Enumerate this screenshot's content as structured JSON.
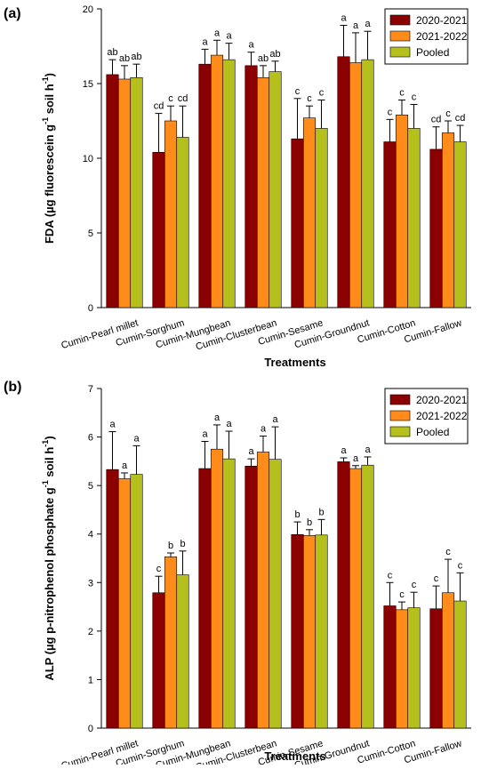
{
  "chart_data": [
    {
      "type": "bar",
      "panel_label": "(a)",
      "ylabel_main": "FDA (µg fluorescein g",
      "ylabel_sup1": "-1",
      "ylabel_mid": " soil h",
      "ylabel_sup2": "-1",
      "ylabel_end": ")",
      "xlabel": "Treatments",
      "ylim": [
        0,
        20
      ],
      "yticks": [
        "0",
        "5",
        "10",
        "15",
        "20"
      ],
      "ytick_values": [
        0,
        5,
        10,
        15,
        20
      ],
      "legend_position": "top-right",
      "categories": [
        "Cumin-Pearl millet",
        "Cumin-Sorghum",
        "Cumin-Mungbean",
        "Cumin-Clusterbean",
        "Cumin-Sesame",
        "Cumin-Groundnut",
        "Cumin-Cotton",
        "Cumin-Fallow"
      ],
      "series": [
        {
          "name": "2020-2021",
          "color": "#8b0000",
          "values": [
            15.6,
            10.4,
            16.3,
            16.2,
            11.3,
            16.8,
            11.1,
            10.6
          ],
          "errors": [
            1.0,
            2.6,
            1.0,
            0.9,
            2.7,
            2.1,
            1.5,
            1.5
          ],
          "labels": [
            "ab",
            "cd",
            "a",
            "a",
            "c",
            "a",
            "c",
            "cd"
          ]
        },
        {
          "name": "2021-2022",
          "color": "#ff8c1a",
          "values": [
            15.3,
            12.5,
            16.9,
            15.4,
            12.7,
            16.4,
            12.9,
            11.7
          ],
          "errors": [
            0.9,
            1.0,
            1.0,
            0.8,
            0.8,
            2.0,
            1.0,
            0.8
          ],
          "labels": [
            "ab",
            "c",
            "a",
            "ab",
            "c",
            "a",
            "c",
            "c"
          ]
        },
        {
          "name": "Pooled",
          "color": "#b5c01c",
          "values": [
            15.4,
            11.4,
            16.6,
            15.8,
            12.0,
            16.6,
            12.0,
            11.1
          ],
          "errors": [
            0.9,
            2.1,
            1.1,
            0.7,
            1.9,
            1.9,
            1.6,
            1.1
          ],
          "labels": [
            "ab",
            "cd",
            "a",
            "ab",
            "c",
            "a",
            "c",
            "cd"
          ]
        }
      ]
    },
    {
      "type": "bar",
      "panel_label": "(b)",
      "ylabel_main": "ALP (µg p-nitrophenol phosphate g",
      "ylabel_sup1": "-1",
      "ylabel_mid": " soil h",
      "ylabel_sup2": "-1",
      "ylabel_end": ")",
      "xlabel": "Treatments",
      "ylim": [
        0,
        7
      ],
      "yticks": [
        "0",
        "1",
        "2",
        "3",
        "4",
        "5",
        "6",
        "7"
      ],
      "ytick_values": [
        0,
        1,
        2,
        3,
        4,
        5,
        6,
        7
      ],
      "legend_position": "top-right",
      "categories": [
        "Cumin-Pearl millet",
        "Cumin-Sorghum",
        "Cumin-Mungbean",
        "Cumin-Clusterbean",
        "Cumin-Sesame",
        "Cumin-Groundnut",
        "Cumin-Cotton",
        "Cumin-Fallow"
      ],
      "series": [
        {
          "name": "2020-2021",
          "color": "#8b0000",
          "values": [
            5.33,
            2.79,
            5.35,
            5.4,
            3.99,
            5.49,
            2.52,
            2.46
          ],
          "errors": [
            0.78,
            0.34,
            0.56,
            0.15,
            0.26,
            0.08,
            0.48,
            0.47
          ],
          "labels": [
            "a",
            "c",
            "a",
            "a",
            "b",
            "a",
            "c",
            "c"
          ]
        },
        {
          "name": "2021-2022",
          "color": "#ff8c1a",
          "values": [
            5.14,
            3.53,
            5.75,
            5.69,
            3.97,
            5.35,
            2.44,
            2.79
          ],
          "errors": [
            0.12,
            0.08,
            0.5,
            0.33,
            0.12,
            0.06,
            0.16,
            0.69
          ],
          "labels": [
            "a",
            "b",
            "a",
            "a",
            "b",
            "a",
            "c",
            "c"
          ]
        },
        {
          "name": "Pooled",
          "color": "#b5c01c",
          "values": [
            5.23,
            3.16,
            5.55,
            5.54,
            3.98,
            5.42,
            2.48,
            2.62
          ],
          "errors": [
            0.59,
            0.49,
            0.57,
            0.67,
            0.32,
            0.17,
            0.32,
            0.58
          ],
          "labels": [
            "a",
            "b",
            "a",
            "a",
            "b",
            "a",
            "c",
            "c"
          ]
        }
      ]
    }
  ]
}
